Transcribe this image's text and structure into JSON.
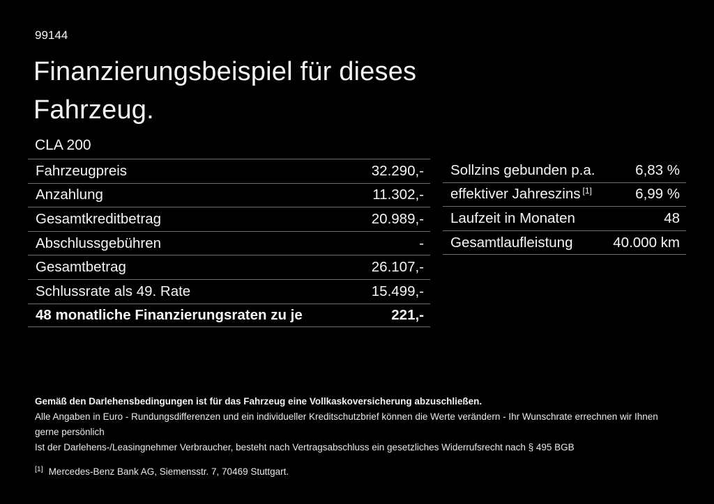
{
  "colors": {
    "background": "#000000",
    "text": "#f5f5f5",
    "divider": "#6f6f6f"
  },
  "header": {
    "vehicle_id": "99144",
    "title": "Finanzierungsbeispiel für dieses Fahrzeug.",
    "model": "CLA 200"
  },
  "financing_table": {
    "rows": [
      {
        "label": "Fahrzeugpreis",
        "value": "32.290,-"
      },
      {
        "label": "Anzahlung",
        "value": "11.302,-"
      },
      {
        "label": "Gesamtkreditbetrag",
        "value": "20.989,-"
      },
      {
        "label": "Abschlussgebühren",
        "value": "-"
      },
      {
        "label": "Gesamtbetrag",
        "value": "26.107,-"
      },
      {
        "label": "Schlussrate als 49. Rate",
        "value": "15.499,-"
      },
      {
        "label": "48 monatliche Finanzierungsraten zu je",
        "value": "221,-"
      }
    ]
  },
  "conditions_table": {
    "rows": [
      {
        "label": "Sollzins gebunden p.a.",
        "value": "6,83 %"
      },
      {
        "label": "effektiver Jahreszins",
        "footnote_marker": "[1]",
        "value": "6,99 %"
      },
      {
        "label": "Laufzeit in Monaten",
        "value": "48"
      },
      {
        "label": "Gesamtlaufleistung",
        "value": "40.000 km"
      }
    ]
  },
  "footer": {
    "insurance_note": "Gemäß den Darlehensbedingungen ist für das Fahrzeug eine Vollkaskoversicherung abzuschließen.",
    "disclaimer_line1": "Alle Angaben in Euro - Rundungsdifferenzen und ein individueller Kreditschutzbrief können die Werte verändern - Ihr Wunschrate errechnen wir Ihnen gerne persönlich",
    "disclaimer_line2": "Ist der Darlehens-/Leasingnehmer Verbraucher, besteht nach Vertragsabschluss ein gesetzliches Widerrufsrecht nach § 495 BGB",
    "footnote_marker": "[1]",
    "footnote_text": "Mercedes-Benz Bank AG, Siemensstr. 7, 70469 Stuttgart."
  }
}
